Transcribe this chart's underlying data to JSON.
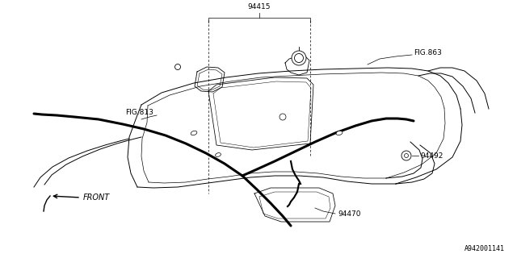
{
  "background_color": "#ffffff",
  "diagram_color": "#000000",
  "line_color": "#555555",
  "footer_text": "A942001141",
  "label_94415": "94415",
  "label_fig863": "FIG.863",
  "label_fig813": "FIG.813",
  "label_94492": "94492",
  "label_94470": "94470",
  "label_front": "FRONT",
  "lw_body": 0.7,
  "lw_harness": 2.2,
  "lw_leader": 0.5,
  "lw_dash": 0.5,
  "font_size": 6.5
}
